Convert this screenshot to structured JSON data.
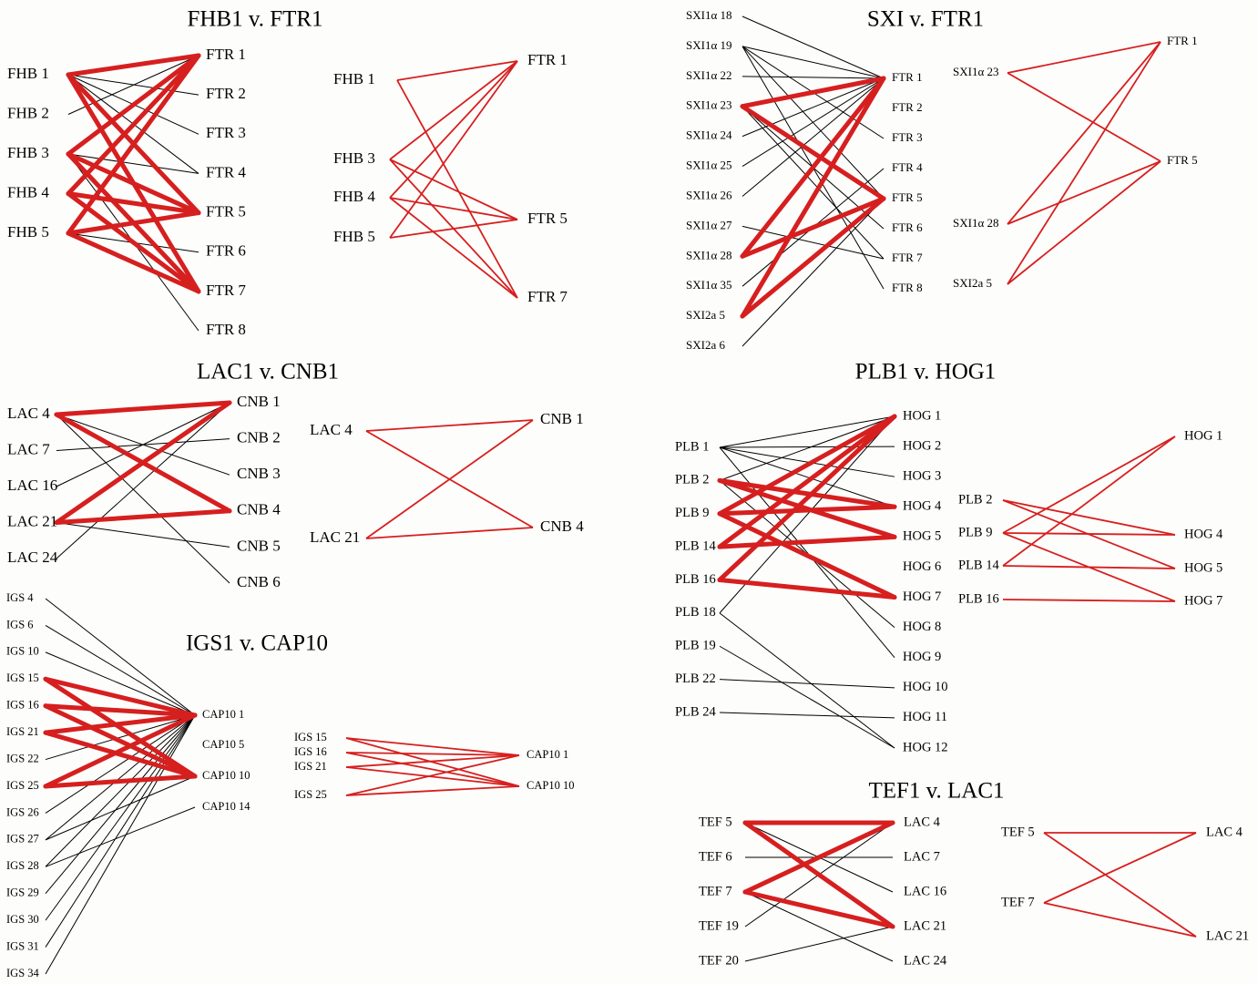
{
  "colors": {
    "highlight": "#d61f1f",
    "line": "#000000",
    "background": "#fdfdfb"
  },
  "panels": {
    "fhb_ftr": {
      "title": "FHB1 v. FTR1",
      "left": [
        "FHB 1",
        "FHB 2",
        "FHB 3",
        "FHB 4",
        "FHB 5"
      ],
      "right": [
        "FTR 1",
        "FTR 2",
        "FTR 3",
        "FTR 4",
        "FTR 5",
        "FTR 6",
        "FTR 7",
        "FTR 8"
      ],
      "thin": [
        [
          0,
          1
        ],
        [
          0,
          2
        ],
        [
          0,
          3
        ],
        [
          1,
          0
        ],
        [
          2,
          3
        ],
        [
          2,
          7
        ],
        [
          4,
          5
        ]
      ],
      "thick": [
        [
          0,
          0
        ],
        [
          0,
          4
        ],
        [
          0,
          6
        ],
        [
          2,
          0
        ],
        [
          2,
          4
        ],
        [
          2,
          6
        ],
        [
          3,
          0
        ],
        [
          3,
          4
        ],
        [
          3,
          6
        ],
        [
          4,
          0
        ],
        [
          4,
          4
        ],
        [
          4,
          6
        ]
      ],
      "sub_left": [
        "FHB 1",
        "FHB 3",
        "FHB 4",
        "FHB 5"
      ],
      "sub_right": [
        "FTR 1",
        "FTR 5",
        "FTR 7"
      ],
      "sub_edges": [
        [
          0,
          0
        ],
        [
          0,
          2
        ],
        [
          1,
          0
        ],
        [
          1,
          1
        ],
        [
          1,
          2
        ],
        [
          2,
          0
        ],
        [
          2,
          1
        ],
        [
          2,
          2
        ],
        [
          3,
          0
        ],
        [
          3,
          1
        ]
      ]
    },
    "sxi_ftr": {
      "title": "SXI v. FTR1",
      "left": [
        "SXI1α 18",
        "SXI1α 19",
        "SXI1α 22",
        "SXI1α 23",
        "SXI1α 24",
        "SXI1α 25",
        "SXI1α 26",
        "SXI1α 27",
        "SXI1α 28",
        "SXI1α 35",
        "SXI2a 5",
        "SXI2a 6"
      ],
      "right": [
        "FTR 1",
        "FTR 2",
        "FTR 3",
        "FTR 4",
        "FTR 5",
        "FTR 6",
        "FTR 7",
        "FTR 8"
      ],
      "thin": [
        [
          0,
          0
        ],
        [
          1,
          0
        ],
        [
          1,
          2
        ],
        [
          1,
          4
        ],
        [
          1,
          7
        ],
        [
          2,
          0
        ],
        [
          3,
          5
        ],
        [
          3,
          6
        ],
        [
          4,
          0
        ],
        [
          5,
          0
        ],
        [
          6,
          0
        ],
        [
          7,
          6
        ],
        [
          9,
          3
        ],
        [
          11,
          4
        ]
      ],
      "thick": [
        [
          3,
          0
        ],
        [
          3,
          4
        ],
        [
          8,
          0
        ],
        [
          8,
          4
        ],
        [
          10,
          0
        ],
        [
          10,
          4
        ]
      ],
      "sub_left": [
        "SXI1α 23",
        "SXI1α 28",
        "SXI2a 5"
      ],
      "sub_right": [
        "FTR 1",
        "FTR 5"
      ],
      "sub_edges": [
        [
          0,
          0
        ],
        [
          0,
          1
        ],
        [
          1,
          0
        ],
        [
          1,
          1
        ],
        [
          2,
          0
        ],
        [
          2,
          1
        ]
      ]
    },
    "lac_cnb": {
      "title": "LAC1 v. CNB1",
      "left": [
        "LAC 4",
        "LAC 7",
        "LAC 16",
        "LAC 21",
        "LAC 24"
      ],
      "right": [
        "CNB 1",
        "CNB 2",
        "CNB 3",
        "CNB 4",
        "CNB 5",
        "CNB 6"
      ],
      "thin": [
        [
          0,
          2
        ],
        [
          0,
          5
        ],
        [
          1,
          1
        ],
        [
          2,
          0
        ],
        [
          3,
          4
        ],
        [
          4,
          0
        ]
      ],
      "thick": [
        [
          0,
          0
        ],
        [
          0,
          3
        ],
        [
          3,
          0
        ],
        [
          3,
          3
        ]
      ],
      "sub_left": [
        "LAC 4",
        "LAC 21"
      ],
      "sub_right": [
        "CNB 1",
        "CNB 4"
      ],
      "sub_edges": [
        [
          0,
          0
        ],
        [
          0,
          1
        ],
        [
          1,
          0
        ],
        [
          1,
          1
        ]
      ]
    },
    "plb_hog": {
      "title": "PLB1 v. HOG1",
      "left": [
        "PLB 1",
        "PLB 2",
        "PLB 9",
        "PLB 14",
        "PLB 16",
        "PLB 18",
        "PLB 19",
        "PLB 22",
        "PLB 24"
      ],
      "right": [
        "HOG 1",
        "HOG 2",
        "HOG 3",
        "HOG 4",
        "HOG 5",
        "HOG 6",
        "HOG 7",
        "HOG 8",
        "HOG 9",
        "HOG 10",
        "HOG 11",
        "HOG 12"
      ],
      "thin": [
        [
          0,
          0
        ],
        [
          0,
          1
        ],
        [
          0,
          2
        ],
        [
          0,
          3
        ],
        [
          0,
          8
        ],
        [
          1,
          7
        ],
        [
          1,
          0
        ],
        [
          5,
          0
        ],
        [
          5,
          11
        ],
        [
          6,
          11
        ],
        [
          7,
          9
        ],
        [
          8,
          10
        ]
      ],
      "thick": [
        [
          1,
          3
        ],
        [
          1,
          4
        ],
        [
          2,
          0
        ],
        [
          2,
          3
        ],
        [
          2,
          6
        ],
        [
          3,
          0
        ],
        [
          3,
          4
        ],
        [
          4,
          0
        ],
        [
          4,
          6
        ]
      ],
      "sub_left": [
        "PLB 2",
        "PLB 9",
        "PLB 14",
        "PLB 16"
      ],
      "sub_right": [
        "HOG 1",
        "HOG 4",
        "HOG 5",
        "HOG 7"
      ],
      "sub_edges": [
        [
          0,
          1
        ],
        [
          0,
          2
        ],
        [
          1,
          0
        ],
        [
          1,
          1
        ],
        [
          1,
          3
        ],
        [
          2,
          0
        ],
        [
          2,
          2
        ],
        [
          3,
          3
        ]
      ]
    },
    "igs_cap": {
      "title": "IGS1 v. CAP10",
      "left": [
        "IGS 4",
        "IGS 6",
        "IGS 10",
        "IGS 15",
        "IGS 16",
        "IGS 21",
        "IGS 22",
        "IGS 25",
        "IGS 26",
        "IGS 27",
        "IGS 28",
        "IGS 29",
        "IGS 30",
        "IGS 31",
        "IGS 34"
      ],
      "right": [
        "CAP10 1",
        "CAP10 5",
        "CAP10 10",
        "CAP10 14"
      ],
      "thin": [
        [
          0,
          0
        ],
        [
          1,
          0
        ],
        [
          2,
          0
        ],
        [
          6,
          0
        ],
        [
          8,
          0
        ],
        [
          9,
          0
        ],
        [
          10,
          0
        ],
        [
          11,
          0
        ],
        [
          12,
          0
        ],
        [
          13,
          0
        ],
        [
          14,
          0
        ],
        [
          10,
          3
        ],
        [
          9,
          2
        ]
      ],
      "thick": [
        [
          3,
          0
        ],
        [
          3,
          2
        ],
        [
          4,
          0
        ],
        [
          4,
          2
        ],
        [
          5,
          0
        ],
        [
          5,
          2
        ],
        [
          7,
          0
        ],
        [
          7,
          2
        ]
      ],
      "sub_left": [
        "IGS 15",
        "IGS 16",
        "IGS 21",
        "IGS 25"
      ],
      "sub_right": [
        "CAP10 1",
        "CAP10 10"
      ],
      "sub_edges": [
        [
          0,
          0
        ],
        [
          0,
          1
        ],
        [
          1,
          0
        ],
        [
          1,
          1
        ],
        [
          2,
          0
        ],
        [
          2,
          1
        ],
        [
          3,
          0
        ],
        [
          3,
          1
        ]
      ]
    },
    "tef_lac": {
      "title": "TEF1 v. LAC1",
      "left": [
        "TEF 5",
        "TEF 6",
        "TEF 7",
        "TEF 19",
        "TEF 20"
      ],
      "right": [
        "LAC 4",
        "LAC 7",
        "LAC 16",
        "LAC 21",
        "LAC 24"
      ],
      "thin": [
        [
          0,
          2
        ],
        [
          1,
          1
        ],
        [
          2,
          4
        ],
        [
          3,
          0
        ],
        [
          4,
          3
        ]
      ],
      "thick": [
        [
          0,
          0
        ],
        [
          0,
          3
        ],
        [
          2,
          0
        ],
        [
          2,
          3
        ]
      ],
      "sub_left": [
        "TEF 5",
        "TEF 7"
      ],
      "sub_right": [
        "LAC 4",
        "LAC 21"
      ],
      "sub_edges": [
        [
          0,
          0
        ],
        [
          0,
          1
        ],
        [
          1,
          0
        ],
        [
          1,
          1
        ]
      ]
    }
  }
}
